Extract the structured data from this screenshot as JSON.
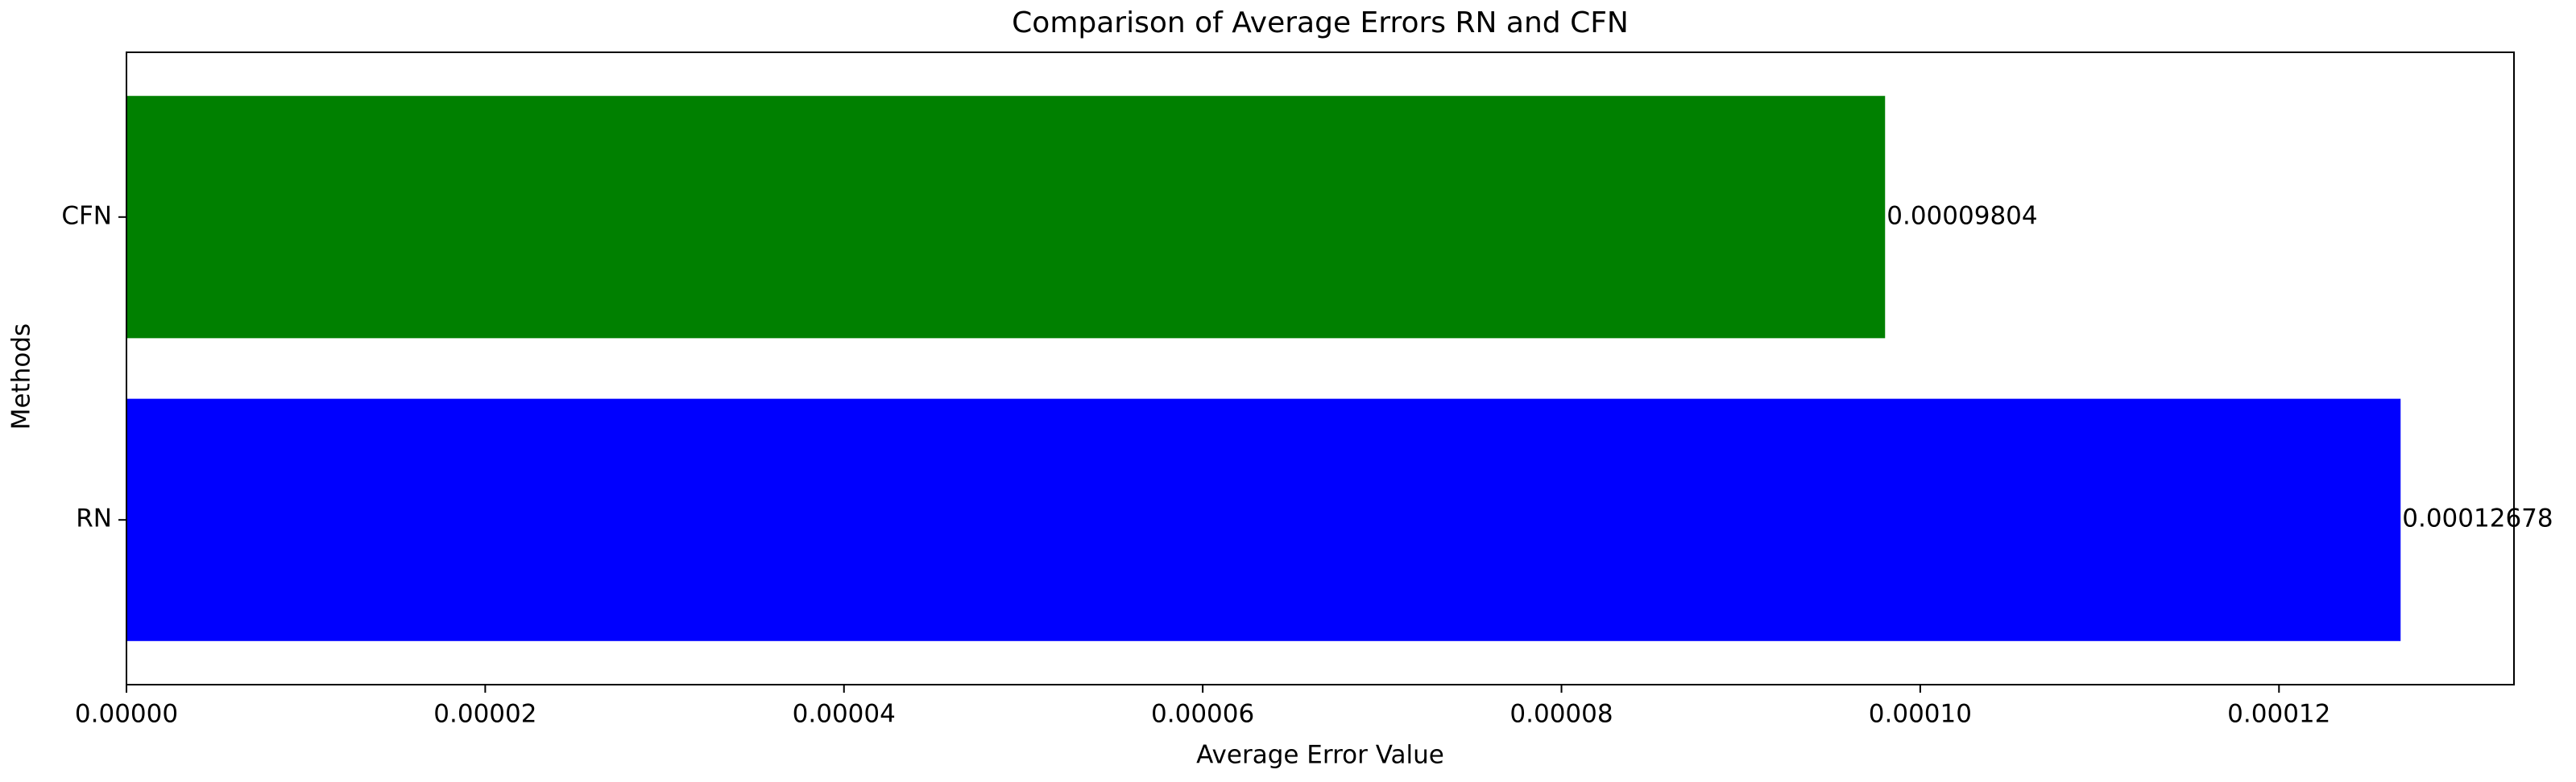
{
  "chart_data": {
    "type": "bar",
    "orientation": "horizontal",
    "title": "Comparison of Average Errors RN and CFN",
    "x_label": "Average Error Value",
    "y_label": "Methods",
    "categories": [
      "RN",
      "CFN"
    ],
    "values": [
      0.00012678,
      9.804e-05
    ],
    "colors": [
      "#0000ff",
      "#008000"
    ],
    "xlim": [
      0,
      0.0001331
    ],
    "xticks": [
      {
        "value": 0,
        "label": "0.00000"
      },
      {
        "value": 2e-05,
        "label": "0.00002"
      },
      {
        "value": 4e-05,
        "label": "0.00004"
      },
      {
        "value": 6e-05,
        "label": "0.00006"
      },
      {
        "value": 8e-05,
        "label": "0.00008"
      },
      {
        "value": 0.0001,
        "label": "0.00010"
      },
      {
        "value": 0.00012,
        "label": "0.00012"
      }
    ],
    "grid": false
  }
}
